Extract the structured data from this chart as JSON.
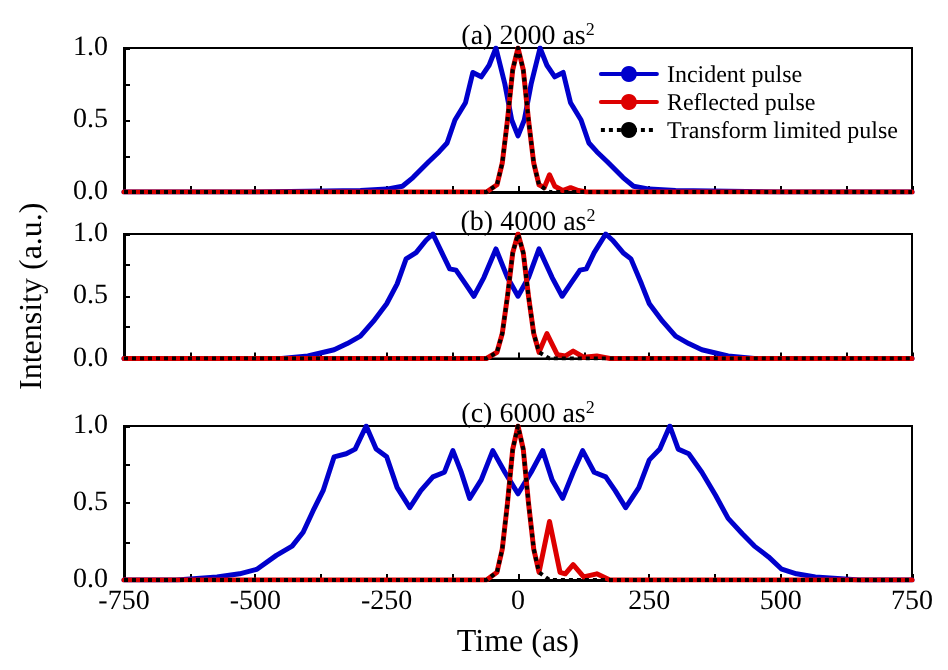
{
  "chart_data": [
    {
      "type": "line",
      "title": "(a) 2000 as$^{2}$",
      "xlim": [
        -750,
        750
      ],
      "xticks": [
        -750,
        {
          "value": -625,
          "label": null
        },
        -500,
        {
          "value": -375,
          "label": null
        },
        -250,
        {
          "value": -125,
          "label": null
        },
        0,
        {
          "value": 125,
          "label": null
        },
        250,
        {
          "value": 375,
          "label": null
        },
        500,
        {
          "value": 625,
          "label": null
        },
        750
      ],
      "ylim": [
        0,
        1
      ],
      "yticks": [
        {
          "value": 0,
          "label": "0.0"
        },
        {
          "value": 0.25,
          "label": null
        },
        {
          "value": 0.5,
          "label": "0.5"
        },
        {
          "value": 0.75,
          "label": null
        },
        {
          "value": 1,
          "label": "1.0"
        }
      ],
      "tick_labels": "y",
      "grid": false,
      "legend": "top right",
      "marker": "none",
      "series": [
        {
          "name": "Incident pulse",
          "color": "#0000cc",
          "line_style": "solid",
          "x": [
            -750,
            -500,
            -300,
            -250,
            -220,
            -200,
            -170,
            -150,
            -135,
            -120,
            -100,
            -86,
            -70,
            -55,
            -42,
            -25,
            -12,
            0,
            12,
            25,
            42,
            55,
            70,
            86,
            100,
            120,
            135,
            150,
            170,
            200,
            220,
            250,
            300,
            500,
            750
          ],
          "values": [
            0,
            0,
            0.01,
            0.02,
            0.04,
            0.1,
            0.21,
            0.28,
            0.34,
            0.5,
            0.62,
            0.83,
            0.8,
            0.88,
            1.0,
            0.75,
            0.5,
            0.39,
            0.5,
            0.75,
            1.0,
            0.88,
            0.8,
            0.83,
            0.62,
            0.5,
            0.34,
            0.28,
            0.21,
            0.1,
            0.04,
            0.02,
            0.01,
            0,
            0
          ]
        },
        {
          "name": "Reflected pulse",
          "color": "#dd0000",
          "line_style": "solid",
          "x": [
            -750,
            -60,
            -40,
            -30,
            -20,
            -10,
            0,
            10,
            20,
            30,
            40,
            50,
            60,
            70,
            85,
            100,
            115,
            130,
            750
          ],
          "values": [
            0,
            0,
            0.05,
            0.2,
            0.5,
            0.85,
            1,
            0.85,
            0.5,
            0.2,
            0.05,
            0.03,
            0.12,
            0.04,
            0.01,
            0.03,
            0.01,
            0,
            0
          ]
        },
        {
          "name": "Transform limited pulse",
          "color": "#000000",
          "line_style": "dotted",
          "x": [
            -750,
            -60,
            -40,
            -30,
            -20,
            -10,
            0,
            10,
            20,
            30,
            40,
            60,
            750
          ],
          "values": [
            0,
            0,
            0.05,
            0.2,
            0.5,
            0.85,
            1,
            0.85,
            0.5,
            0.2,
            0.05,
            0,
            0
          ]
        }
      ]
    },
    {
      "type": "line",
      "title": "(b) 4000 as$^{2}$",
      "ylabel": "Intensity (a.u.)",
      "xlim": [
        -750,
        750
      ],
      "xticks": [
        -750,
        {
          "value": -625,
          "label": null
        },
        -500,
        {
          "value": -375,
          "label": null
        },
        -250,
        {
          "value": -125,
          "label": null
        },
        0,
        {
          "value": 125,
          "label": null
        },
        250,
        {
          "value": 375,
          "label": null
        },
        500,
        {
          "value": 625,
          "label": null
        },
        750
      ],
      "ylim": [
        0,
        1
      ],
      "yticks": [
        {
          "value": 0,
          "label": "0.0"
        },
        {
          "value": 0.25,
          "label": null
        },
        {
          "value": 0.5,
          "label": "0.5"
        },
        {
          "value": 0.75,
          "label": null
        },
        {
          "value": 1,
          "label": "1.0"
        }
      ],
      "tick_labels": "y",
      "grid": false,
      "marker": "none",
      "series": [
        {
          "color": "#0000cc",
          "line_style": "solid",
          "x": [
            -750,
            -450,
            -400,
            -350,
            -325,
            -300,
            -275,
            -250,
            -230,
            -213,
            -194,
            -175,
            -162,
            -145,
            -130,
            -118,
            -100,
            -84,
            -65,
            -42,
            -20,
            0,
            20,
            40,
            65,
            84,
            100,
            118,
            130,
            145,
            167,
            180,
            200,
            215,
            235,
            250,
            275,
            300,
            325,
            350,
            400,
            450,
            750
          ],
          "values": [
            0,
            0,
            0.02,
            0.07,
            0.12,
            0.18,
            0.3,
            0.44,
            0.6,
            0.8,
            0.85,
            0.95,
            1.0,
            0.85,
            0.72,
            0.71,
            0.6,
            0.5,
            0.65,
            0.88,
            0.65,
            0.5,
            0.65,
            0.88,
            0.65,
            0.5,
            0.6,
            0.71,
            0.72,
            0.85,
            1.0,
            0.95,
            0.85,
            0.8,
            0.6,
            0.44,
            0.3,
            0.18,
            0.12,
            0.07,
            0.02,
            0,
            0
          ]
        },
        {
          "color": "#dd0000",
          "line_style": "solid",
          "x": [
            -750,
            -60,
            -40,
            -30,
            -20,
            -10,
            0,
            10,
            20,
            30,
            40,
            55,
            75,
            90,
            105,
            125,
            150,
            175,
            750
          ],
          "values": [
            0,
            0,
            0.05,
            0.2,
            0.5,
            0.85,
            1,
            0.85,
            0.5,
            0.2,
            0.05,
            0.2,
            0.03,
            0.02,
            0.06,
            0.01,
            0.02,
            0,
            0
          ]
        },
        {
          "color": "#000000",
          "line_style": "dotted",
          "x": [
            -750,
            -60,
            -40,
            -30,
            -20,
            -10,
            0,
            10,
            20,
            30,
            40,
            60,
            750
          ],
          "values": [
            0,
            0,
            0.05,
            0.2,
            0.5,
            0.85,
            1,
            0.85,
            0.5,
            0.2,
            0.05,
            0,
            0
          ]
        }
      ]
    },
    {
      "type": "line",
      "title": "(c) 6000 as$^{2}$",
      "xlabel": "Time (as)",
      "xlim": [
        -750,
        750
      ],
      "xticks": [
        -750,
        {
          "value": -625,
          "label": null
        },
        -500,
        {
          "value": -375,
          "label": null
        },
        -250,
        {
          "value": -125,
          "label": null
        },
        0,
        {
          "value": 125,
          "label": null
        },
        250,
        {
          "value": 375,
          "label": null
        },
        500,
        {
          "value": 625,
          "label": null
        },
        750
      ],
      "ylim": [
        0,
        1
      ],
      "yticks": [
        {
          "value": 0,
          "label": "0.0"
        },
        {
          "value": 0.25,
          "label": null
        },
        {
          "value": 0.5,
          "label": "0.5"
        },
        {
          "value": 0.75,
          "label": null
        },
        {
          "value": 1,
          "label": "1.0"
        }
      ],
      "grid": false,
      "marker": "none",
      "series": [
        {
          "color": "#0000cc",
          "line_style": "solid",
          "x": [
            -750,
            -650,
            -573,
            -530,
            -497,
            -460,
            -430,
            -409,
            -390,
            -371,
            -350,
            -327,
            -310,
            -289,
            -270,
            -250,
            -230,
            -206,
            -185,
            -162,
            -140,
            -124,
            -108,
            -92,
            -70,
            -48,
            -25,
            0,
            25,
            47,
            65,
            85,
            105,
            123,
            145,
            167,
            185,
            205,
            230,
            250,
            270,
            289,
            305,
            325,
            350,
            376,
            400,
            427,
            450,
            477,
            502,
            530,
            566,
            650,
            750
          ],
          "values": [
            0,
            0,
            0.02,
            0.04,
            0.07,
            0.16,
            0.22,
            0.31,
            0.45,
            0.58,
            0.8,
            0.82,
            0.85,
            1.0,
            0.85,
            0.8,
            0.6,
            0.47,
            0.58,
            0.67,
            0.7,
            0.84,
            0.7,
            0.53,
            0.65,
            0.84,
            0.7,
            0.56,
            0.7,
            0.84,
            0.65,
            0.53,
            0.7,
            0.84,
            0.7,
            0.67,
            0.58,
            0.47,
            0.6,
            0.78,
            0.85,
            1.0,
            0.85,
            0.82,
            0.7,
            0.55,
            0.4,
            0.3,
            0.22,
            0.15,
            0.07,
            0.04,
            0.02,
            0,
            0
          ]
        },
        {
          "color": "#dd0000",
          "line_style": "solid",
          "x": [
            -750,
            -60,
            -40,
            -30,
            -20,
            -10,
            0,
            10,
            20,
            30,
            40,
            60,
            80,
            90,
            105,
            125,
            150,
            175,
            750
          ],
          "values": [
            0,
            0,
            0.05,
            0.2,
            0.5,
            0.85,
            1,
            0.85,
            0.5,
            0.2,
            0.05,
            0.38,
            0.05,
            0.04,
            0.1,
            0.02,
            0.04,
            0,
            0
          ]
        },
        {
          "color": "#000000",
          "line_style": "dotted",
          "x": [
            -750,
            -60,
            -40,
            -30,
            -20,
            -10,
            0,
            10,
            20,
            30,
            40,
            60,
            750
          ],
          "values": [
            0,
            0,
            0.05,
            0.2,
            0.5,
            0.85,
            1,
            0.85,
            0.5,
            0.2,
            0.05,
            0,
            0
          ]
        }
      ]
    }
  ]
}
